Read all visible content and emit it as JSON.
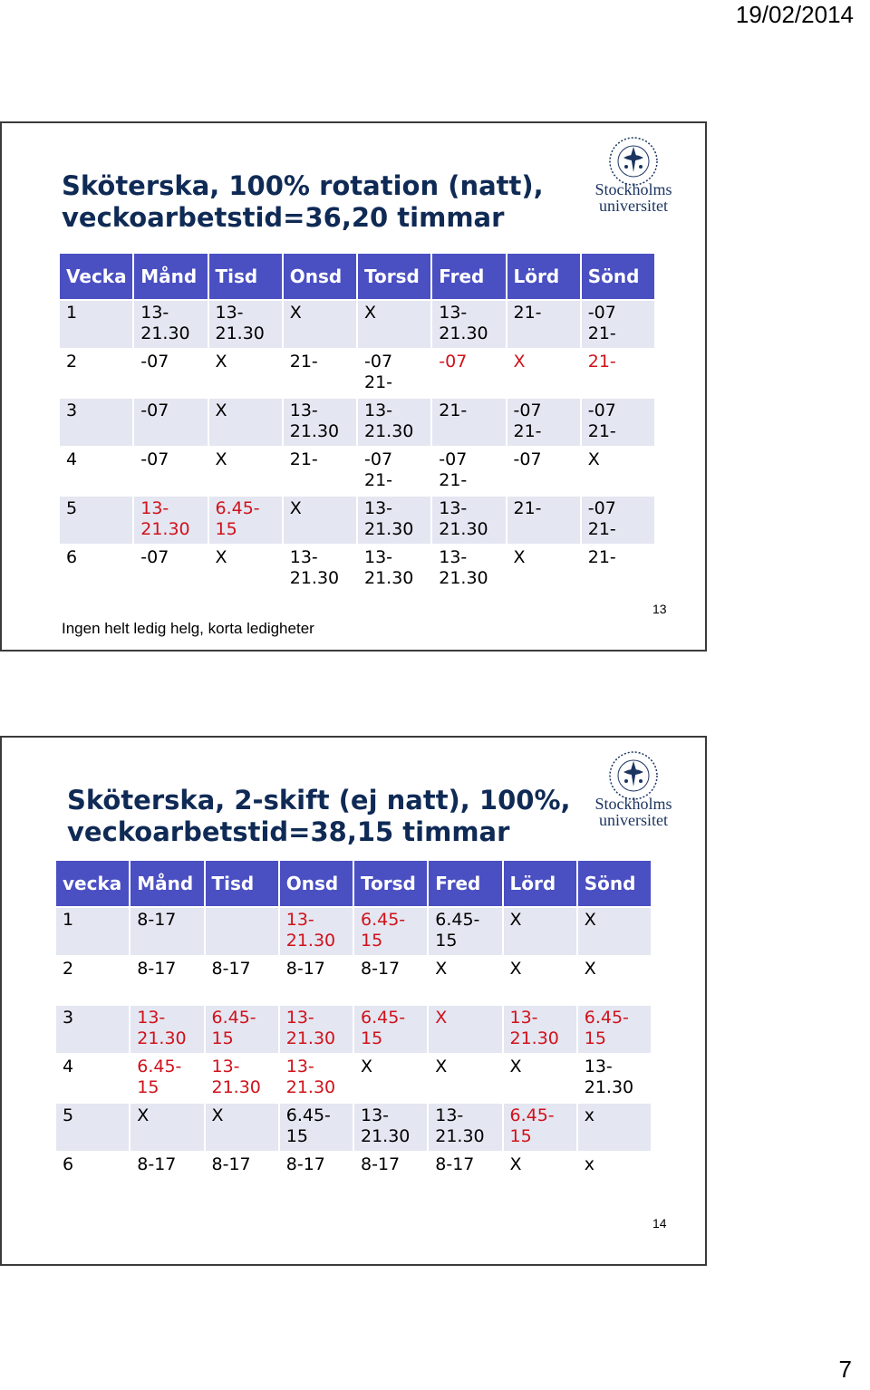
{
  "page": {
    "date": "19/02/2014",
    "number": "7"
  },
  "logo": {
    "line1": "Stockholms",
    "line2": "universitet"
  },
  "slides": [
    {
      "title_line1": "Sköterska, 100% rotation (natt),",
      "title_line2": "veckoarbetstid=36,20 timmar",
      "headers": [
        "Vecka",
        "Månd",
        "Tisd",
        "Onsd",
        "Torsd",
        "Fred",
        "Lörd",
        "Sönd"
      ],
      "rows": [
        [
          "1",
          "13-\n21.30",
          "13-\n21.30",
          "X",
          "X",
          "13-\n21.30",
          "21-",
          "-07\n21-"
        ],
        [
          "2",
          "-07",
          "X",
          "21-",
          "-07\n21-",
          "-07",
          "X",
          "21-"
        ],
        [
          "3",
          "-07",
          "X",
          "13-\n21.30",
          "13-\n21.30",
          "21-",
          "-07\n21-",
          "-07\n21-"
        ],
        [
          "4",
          "-07",
          "X",
          "21-",
          "-07\n21-",
          "-07\n21-",
          "-07",
          "X"
        ],
        [
          "5",
          "13-\n21.30",
          "6.45-\n15",
          "X",
          "13-\n21.30",
          "13-\n21.30",
          "21-",
          "-07\n21-"
        ],
        [
          "6",
          "-07",
          "X",
          "13-\n21.30",
          "13-\n21.30",
          "13-\n21.30",
          "X",
          "21-"
        ]
      ],
      "note": "Ingen helt ledig helg, korta ledigheter",
      "slide_number": "13"
    },
    {
      "title_line1": "Sköterska, 2-skift (ej natt), 100%,",
      "title_line2": "veckoarbetstid=38,15 timmar",
      "headers": [
        "vecka",
        "Månd",
        "Tisd",
        "Onsd",
        "Torsd",
        "Fred",
        "Lörd",
        "Sönd"
      ],
      "rows": [
        [
          "1",
          "8-17",
          "",
          "13-\n21.30",
          "6.45-\n15",
          "6.45-\n15",
          "X",
          "X"
        ],
        [
          "2",
          "8-17",
          "8-17",
          "8-17",
          "8-17",
          "X",
          "X",
          "X"
        ],
        [
          "3",
          "13-\n21.30",
          "6.45-\n15",
          "13-\n21.30",
          "6.45-\n15",
          "X",
          "13-\n21.30",
          "6.45-\n15"
        ],
        [
          "4",
          "6.45-\n15",
          "13-\n21.30",
          "13-\n21.30",
          "X",
          "X",
          "X",
          "13-\n21.30"
        ],
        [
          "5",
          "X",
          "X",
          "6.45-\n15",
          "13-\n21.30",
          "13-\n21.30",
          "6.45-\n15",
          "x"
        ],
        [
          "6",
          "8-17",
          "8-17",
          "8-17",
          "8-17",
          "8-17",
          "X",
          "x"
        ]
      ],
      "slide_number": "14"
    }
  ],
  "colors": {
    "header_bg": "#4a4fc2",
    "row_alt": "#e4e6f1",
    "red_text": "#d0121b",
    "title_blue": "#0f2a55"
  }
}
